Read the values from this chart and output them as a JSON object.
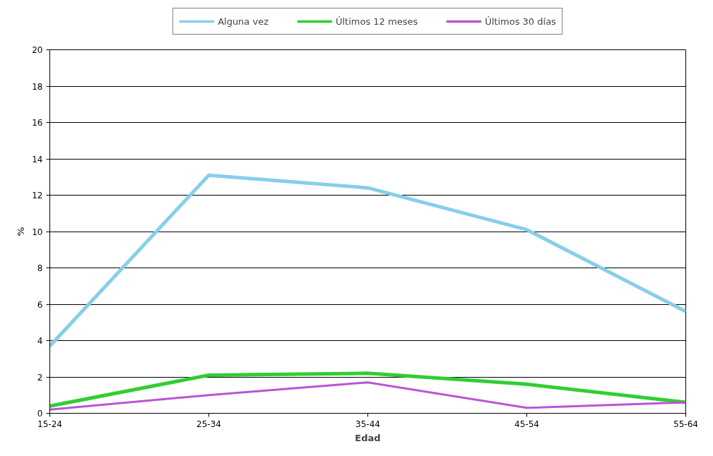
{
  "chart_data": {
    "type": "line",
    "xlabel": "Edad",
    "ylabel": "%",
    "categories": [
      "15-24",
      "25-34",
      "35-44",
      "45-54",
      "55-64"
    ],
    "series": [
      {
        "name": "Alguna vez",
        "color": "#87ceeb",
        "values": [
          3.7,
          13.1,
          12.4,
          10.1,
          5.6
        ]
      },
      {
        "name": "Últimos 12 meses",
        "color": "#32cd32",
        "values": [
          0.4,
          2.1,
          2.2,
          1.6,
          0.6
        ]
      },
      {
        "name": "Últimos 30 días",
        "color": "#ba55d3",
        "values": [
          0.2,
          1.0,
          1.7,
          0.3,
          0.6
        ]
      }
    ],
    "ylim": [
      0,
      20
    ],
    "yticks": [
      0,
      2,
      4,
      6,
      8,
      10,
      12,
      14,
      16,
      18,
      20
    ],
    "grid": "y",
    "legend": "top",
    "marker": "none",
    "line_style": "solid"
  }
}
